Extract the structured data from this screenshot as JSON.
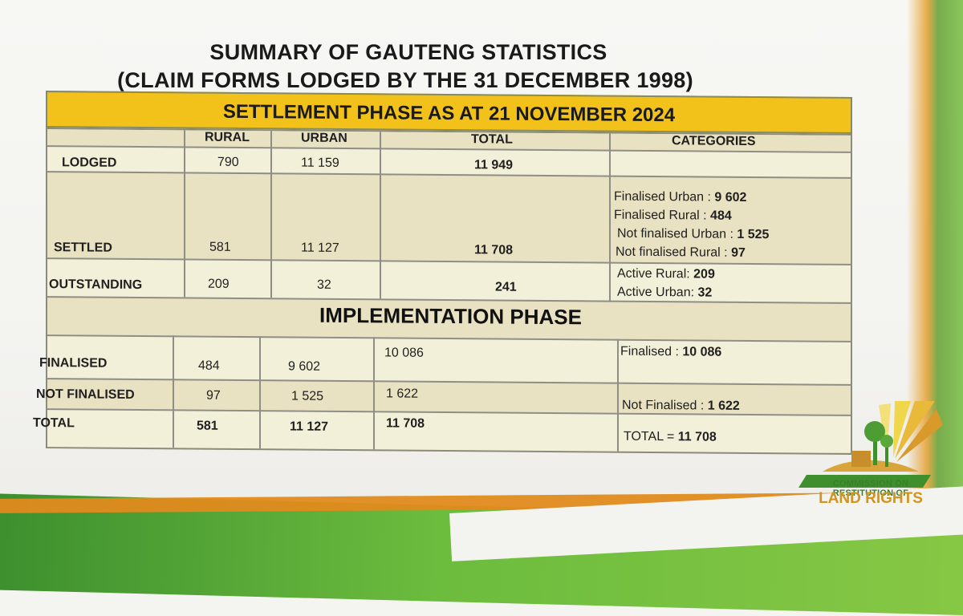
{
  "title_line1": "SUMMARY OF GAUTENG STATISTICS",
  "title_line2": "(CLAIM FORMS LODGED BY THE 31 DECEMBER 1998)",
  "settlement_header": "SETTLEMENT PHASE AS AT 21 NOVEMBER 2024",
  "columns": {
    "rural": "RURAL",
    "urban": "URBAN",
    "total": "TOTAL",
    "categories": "CATEGORIES"
  },
  "settlement_rows": [
    {
      "label": "LODGED",
      "rural": "790",
      "urban": "11 159",
      "total": "11 949",
      "categories": []
    },
    {
      "label": "SETTLED",
      "rural": "581",
      "urban": "11 127",
      "total": "11 708",
      "categories": [
        {
          "text": "Finalised Urban : ",
          "value": "9 602"
        },
        {
          "text": "Finalised Rural : ",
          "value": "484"
        },
        {
          "text": "Not finalised Urban : ",
          "value": "1 525"
        },
        {
          "text": "Not finalised Rural : ",
          "value": "97"
        }
      ]
    },
    {
      "label": "OUTSTANDING",
      "rural": "209",
      "urban": "32",
      "total": "241",
      "categories": [
        {
          "text": "Active Rural: ",
          "value": "209"
        },
        {
          "text": "Active Urban:  ",
          "value": "32"
        }
      ]
    }
  ],
  "implementation_header": "IMPLEMENTATION PHASE",
  "implementation_rows": [
    {
      "label": "FINALISED",
      "rural": "484",
      "urban": "9 602",
      "total": "10 086",
      "category_text": "Finalised : ",
      "category_value": "10 086"
    },
    {
      "label": "NOT FINALISED",
      "rural": "97",
      "urban": "1 525",
      "total": "1 622",
      "category_text": "Not Finalised : ",
      "category_value": "1 622"
    },
    {
      "label": "TOTAL",
      "rural": "581",
      "urban": "11 127",
      "total": "11 708",
      "category_text": "TOTAL = ",
      "category_value": "11 708"
    }
  ],
  "logo": {
    "line1": "COMMISSION ON RESTITUTION OF",
    "line2": "LAND RIGHTS"
  },
  "colors": {
    "banner": "#f2c21b",
    "table_bg": "#f3f0d9",
    "green": "#6cbc3e",
    "orange": "#e08a1e"
  }
}
